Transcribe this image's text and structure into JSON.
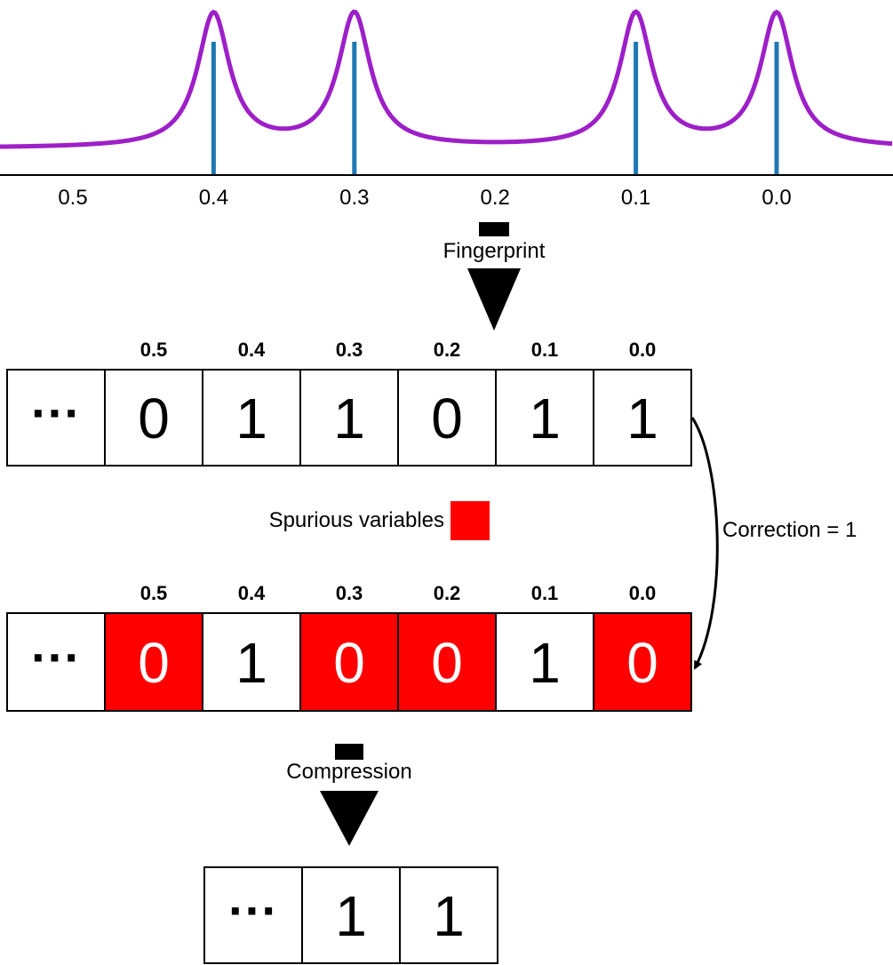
{
  "spectrum": {
    "axis_ticks": [
      "0.5",
      "0.4",
      "0.3",
      "0.2",
      "0.1",
      "0.0"
    ],
    "peaks": [
      "0.4",
      "0.3",
      "0.1",
      "0.0"
    ],
    "curve_color": "#9d1fc7",
    "peak_line_color": "#1f77b4"
  },
  "step1": {
    "label": "Fingerprint"
  },
  "row1": {
    "ellipsis": "···",
    "headers": [
      "0.5",
      "0.4",
      "0.3",
      "0.2",
      "0.1",
      "0.0"
    ],
    "bits": [
      "0",
      "1",
      "1",
      "0",
      "1",
      "1"
    ]
  },
  "legend": {
    "label": "Spurious variables",
    "color": "#ff0000"
  },
  "correction": {
    "label": "Correction = 1"
  },
  "row2": {
    "ellipsis": "···",
    "headers": [
      "0.5",
      "0.4",
      "0.3",
      "0.2",
      "0.1",
      "0.0"
    ],
    "bits": [
      "0",
      "1",
      "0",
      "0",
      "1",
      "0"
    ],
    "spurious": [
      true,
      false,
      true,
      true,
      false,
      true
    ]
  },
  "step2": {
    "label": "Compression"
  },
  "row3": {
    "ellipsis": "···",
    "bits": [
      "1",
      "1"
    ]
  }
}
